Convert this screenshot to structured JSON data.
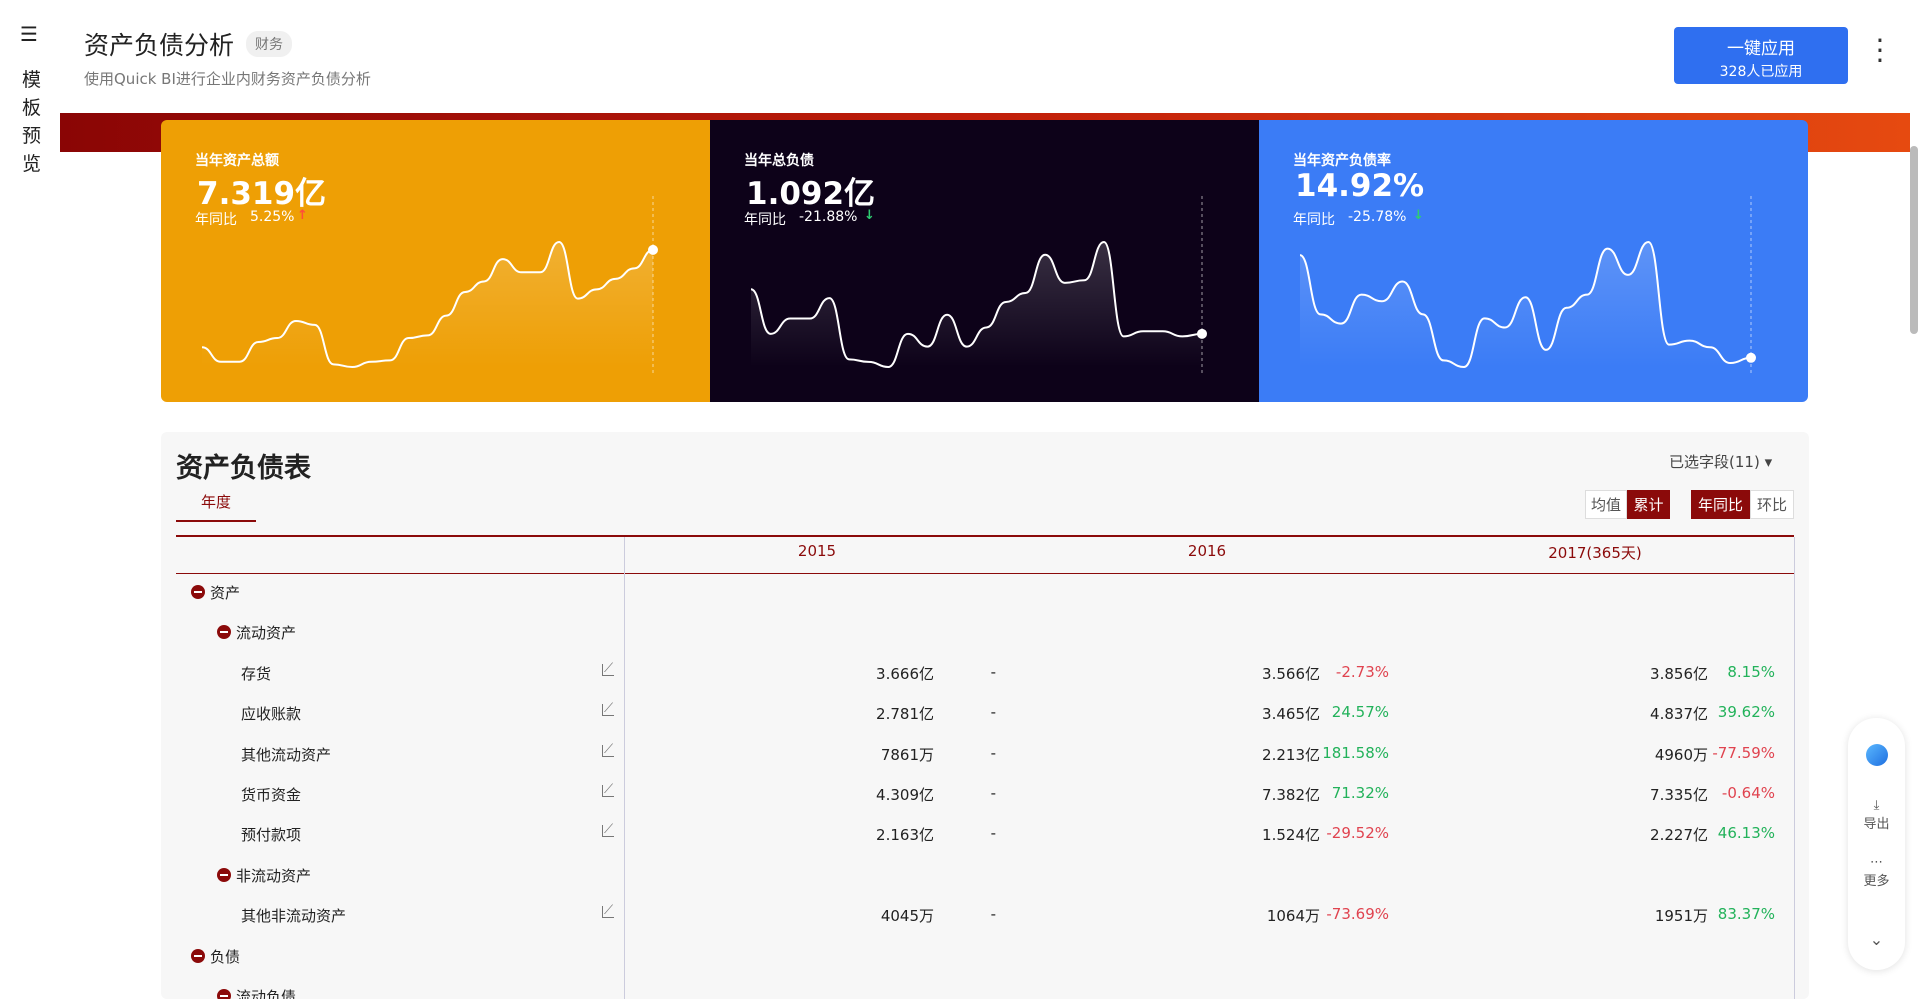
{
  "sidebar": {
    "label": "模板预览"
  },
  "header": {
    "title": "资产负债分析",
    "tag": "财务",
    "subtitle": "使用Quick BI进行企业内财务资产负债分析",
    "apply_button": "一键应用",
    "apply_count": "328人已应用"
  },
  "kpis": [
    {
      "label": "当年资产总额",
      "value": "7.319亿",
      "yoy_label": "年同比",
      "yoy": "5.25%",
      "color": "#ee9f05",
      "trend": [
        18,
        7,
        7,
        22,
        25,
        38,
        35,
        5,
        3,
        7,
        8,
        25,
        27,
        42,
        60,
        68,
        85,
        75,
        75,
        98,
        55,
        62,
        70,
        78,
        92
      ]
    },
    {
      "label": "当年总负债",
      "value": "1.092亿",
      "yoy_label": "年同比",
      "yoy": "-21.88%",
      "color": "#0d0219",
      "trend": [
        65,
        30,
        42,
        42,
        58,
        10,
        8,
        4,
        30,
        20,
        45,
        20,
        35,
        55,
        62,
        92,
        70,
        72,
        102,
        28,
        32,
        32,
        28,
        30
      ]
    },
    {
      "label": "当年资产负债率",
      "value": "14.92%",
      "yoy_label": "年同比",
      "yoy": "-25.78%",
      "color": "#3b7cf6",
      "trend": [
        90,
        45,
        38,
        60,
        55,
        70,
        45,
        10,
        5,
        42,
        35,
        58,
        18,
        50,
        60,
        95,
        75,
        100,
        22,
        25,
        20,
        8,
        12
      ]
    }
  ],
  "table": {
    "title": "资产负债表",
    "fields": "已选字段(11)",
    "tab": "年度",
    "toggles": [
      "均值",
      "累计",
      "年同比",
      "环比"
    ],
    "columns": [
      "2015",
      "2016",
      "2017(365天)"
    ],
    "rows": [
      {
        "label": "资产",
        "level": 0
      },
      {
        "label": "流动资产",
        "level": 1
      },
      {
        "label": "存货",
        "level": 2,
        "cells": [
          [
            "3.666亿",
            "-"
          ],
          [
            "3.566亿",
            "-2.73%"
          ],
          [
            "3.856亿",
            "8.15%"
          ]
        ]
      },
      {
        "label": "应收账款",
        "level": 2,
        "cells": [
          [
            "2.781亿",
            "-"
          ],
          [
            "3.465亿",
            "24.57%"
          ],
          [
            "4.837亿",
            "39.62%"
          ]
        ]
      },
      {
        "label": "其他流动资产",
        "level": 2,
        "cells": [
          [
            "7861万",
            "-"
          ],
          [
            "2.213亿",
            "181.58%"
          ],
          [
            "4960万",
            "-77.59%"
          ]
        ]
      },
      {
        "label": "货币资金",
        "level": 2,
        "cells": [
          [
            "4.309亿",
            "-"
          ],
          [
            "7.382亿",
            "71.32%"
          ],
          [
            "7.335亿",
            "-0.64%"
          ]
        ]
      },
      {
        "label": "预付款项",
        "level": 2,
        "cells": [
          [
            "2.163亿",
            "-"
          ],
          [
            "1.524亿",
            "-29.52%"
          ],
          [
            "2.227亿",
            "46.13%"
          ]
        ]
      },
      {
        "label": "非流动资产",
        "level": 1
      },
      {
        "label": "其他非流动资产",
        "level": 2,
        "cells": [
          [
            "4045万",
            "-"
          ],
          [
            "1064万",
            "-73.69%"
          ],
          [
            "1951万",
            "83.37%"
          ]
        ]
      },
      {
        "label": "负债",
        "level": 0
      },
      {
        "label": "流动负债",
        "level": 1
      }
    ]
  },
  "float_toolbar": {
    "export": "导出",
    "more": "更多"
  }
}
